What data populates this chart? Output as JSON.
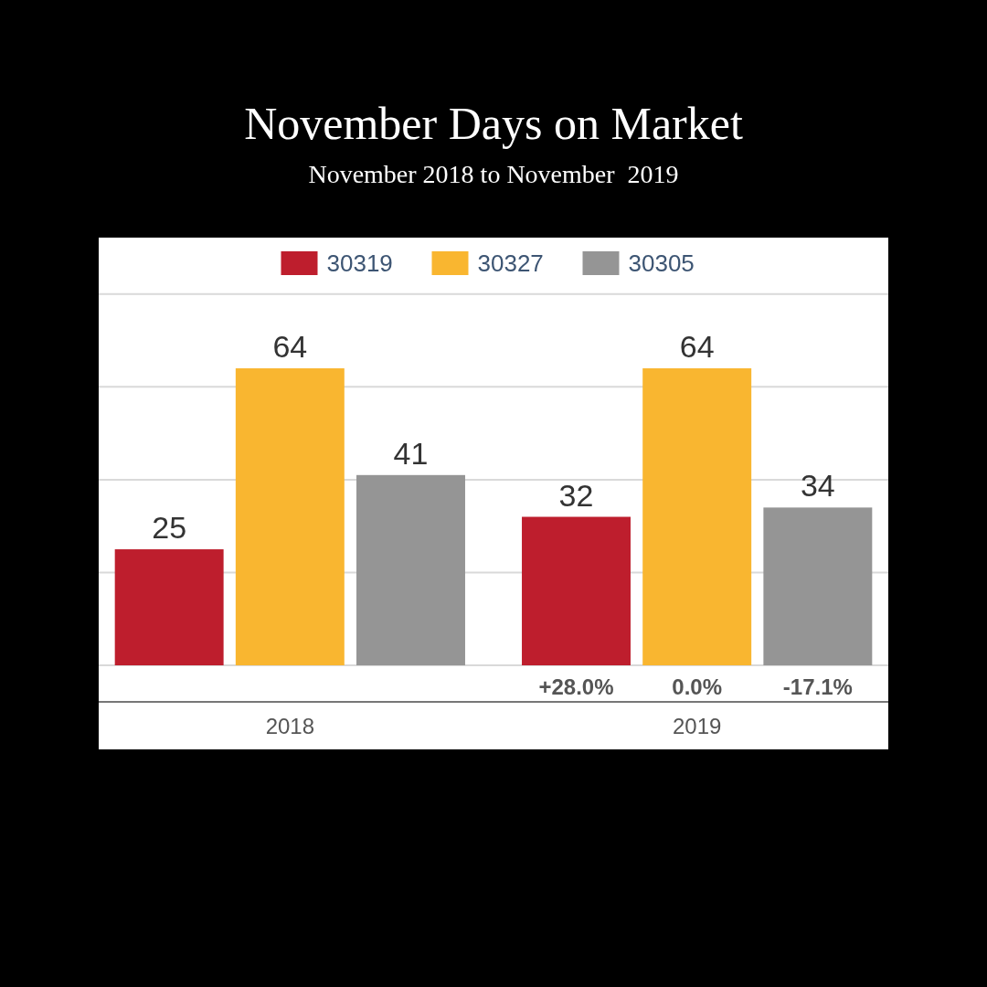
{
  "chart_data": {
    "type": "bar",
    "title": "November Days on Market",
    "subtitle": "November 2018 to November  2019",
    "categories": [
      "2018",
      "2019"
    ],
    "series": [
      {
        "name": "30319",
        "color": "#be1e2d",
        "values": [
          25,
          32
        ]
      },
      {
        "name": "30327",
        "color": "#f9b630",
        "values": [
          64,
          64
        ]
      },
      {
        "name": "30305",
        "color": "#959595",
        "values": [
          41,
          34
        ]
      }
    ],
    "ylim": [
      0,
      90
    ],
    "yticks": [
      {
        "value": 0,
        "label": null
      },
      {
        "value": 20,
        "label": null
      },
      {
        "value": 40,
        "label": null
      },
      {
        "value": 60,
        "label": null
      },
      {
        "value": 80,
        "label": null
      }
    ],
    "grid": "y",
    "legend": "top",
    "tick_labels": "x",
    "data_labels": true,
    "annotations": [
      "+28.0%",
      "0.0%",
      "-17.1%"
    ]
  }
}
